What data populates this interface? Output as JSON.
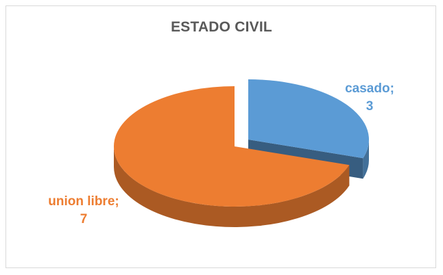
{
  "chart_data": {
    "type": "pie",
    "title": "ESTADO CIVIL",
    "categories": [
      "casado",
      "union libre"
    ],
    "values": [
      3,
      7
    ],
    "colors": {
      "casado": "#5b9bd5",
      "union libre": "#ed7d31"
    },
    "style": "3d-exploded",
    "legend": "none",
    "labels": [
      {
        "category": "casado;",
        "value": "3"
      },
      {
        "category": "union libre;",
        "value": "7"
      }
    ]
  }
}
